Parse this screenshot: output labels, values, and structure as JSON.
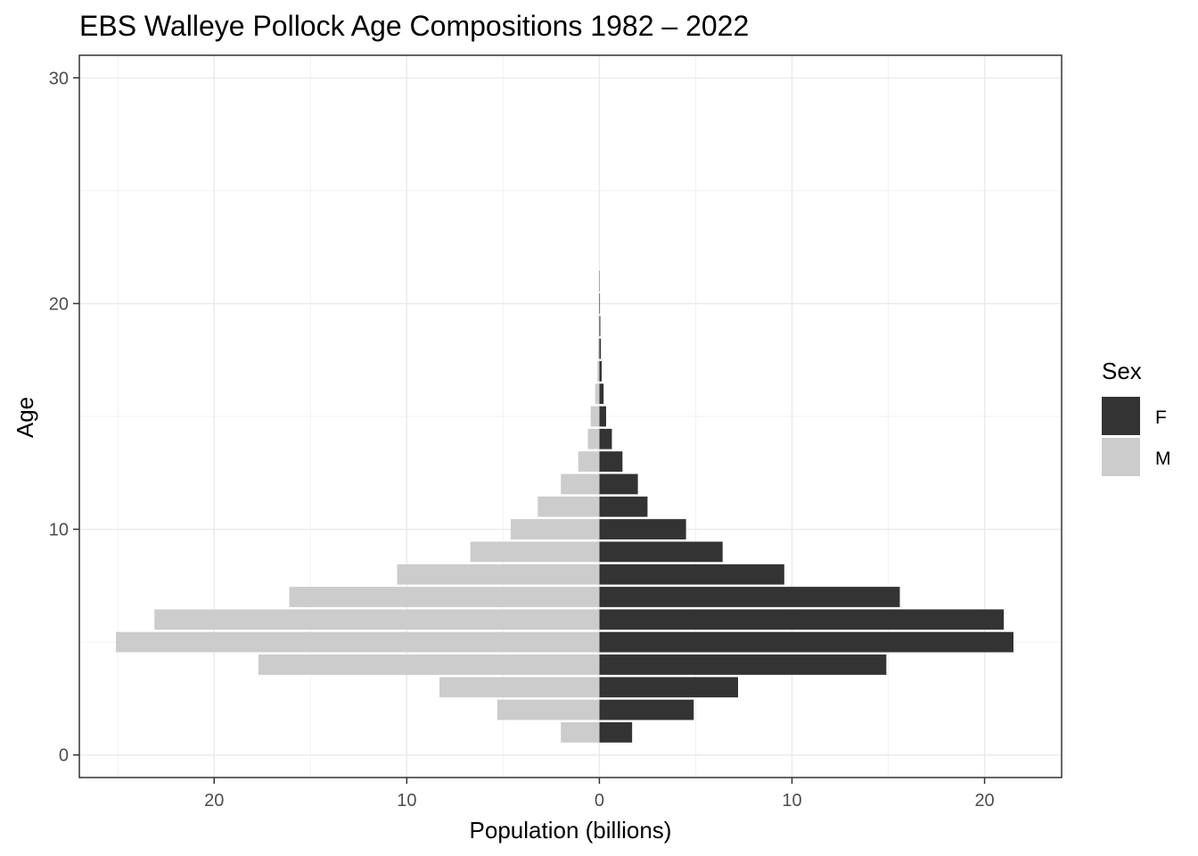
{
  "chart_data": {
    "type": "bar",
    "orientation": "horizontal",
    "title": "EBS Walleye Pollock Age Compositions 1982 – 2022",
    "xlabel": "Population (billions)",
    "ylabel": "Age",
    "xlim": [
      -27,
      24
    ],
    "ylim": [
      -1,
      31
    ],
    "x_ticks": [
      -20,
      -10,
      0,
      10,
      20
    ],
    "x_tick_labels": [
      "20",
      "10",
      "0",
      "10",
      "20"
    ],
    "y_ticks": [
      0,
      10,
      20,
      30
    ],
    "y_tick_labels": [
      "0",
      "10",
      "20",
      "30"
    ],
    "grid": true,
    "legend": {
      "title": "Sex",
      "position": "right"
    },
    "categories": [
      1,
      2,
      3,
      4,
      5,
      6,
      7,
      8,
      9,
      10,
      11,
      12,
      13,
      14,
      15,
      16,
      17,
      18,
      19,
      20,
      21
    ],
    "series": [
      {
        "name": "F",
        "color": "#333333",
        "values": [
          1.7,
          4.9,
          7.2,
          14.9,
          21.5,
          21.0,
          15.6,
          9.6,
          6.4,
          4.5,
          2.5,
          2.0,
          1.2,
          0.65,
          0.35,
          0.22,
          0.12,
          0.08,
          0.05,
          0.03,
          0.02
        ]
      },
      {
        "name": "M",
        "color": "#cccccc",
        "values": [
          2.0,
          5.3,
          8.3,
          17.7,
          25.1,
          23.1,
          16.1,
          10.5,
          6.7,
          4.6,
          3.2,
          2.0,
          1.1,
          0.6,
          0.45,
          0.22,
          0.1,
          0.06,
          0.03,
          0.02,
          0.01
        ]
      }
    ]
  }
}
